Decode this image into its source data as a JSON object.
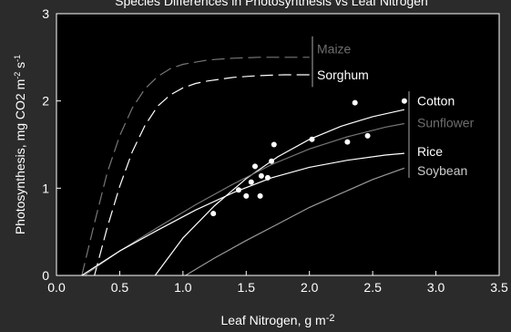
{
  "chart_data": {
    "type": "line",
    "title": "Species Differences in Photosynthesis vs Leaf Nitrogen",
    "xlabel": "Leaf Nitrogen, g m",
    "xlabel_sup": "-2",
    "ylabel": "Photosynthesis, mg CO2 m",
    "ylabel_sup1": "-2",
    "ylabel_mid": " s",
    "ylabel_sup2": "-1",
    "xlim": [
      0,
      3.5
    ],
    "ylim": [
      0,
      3
    ],
    "xticks": [
      "0.0",
      "0.5",
      "1.0",
      "1.5",
      "2.0",
      "2.5",
      "3.0",
      "3.5"
    ],
    "yticks": [
      "0",
      "1",
      "2",
      "3"
    ],
    "grid": false,
    "background": "#000000",
    "page_background": "#2b2b2b",
    "series": [
      {
        "name": "Maize",
        "style": "dashed",
        "color": "#777777",
        "x": [
          0.2,
          0.3,
          0.4,
          0.5,
          0.6,
          0.7,
          0.8,
          0.9,
          1.0,
          1.2,
          1.4,
          1.6,
          1.8,
          2.0
        ],
        "y": [
          0.0,
          0.6,
          1.17,
          1.6,
          1.92,
          2.14,
          2.28,
          2.37,
          2.42,
          2.47,
          2.49,
          2.5,
          2.5,
          2.5
        ]
      },
      {
        "name": "Sorghum",
        "style": "dashed",
        "color": "#ffffff",
        "x": [
          0.3,
          0.4,
          0.5,
          0.6,
          0.7,
          0.8,
          0.9,
          1.0,
          1.1,
          1.2,
          1.4,
          1.6,
          1.8,
          2.0
        ],
        "y": [
          0.0,
          0.54,
          1.02,
          1.42,
          1.72,
          1.94,
          2.07,
          2.15,
          2.2,
          2.23,
          2.27,
          2.29,
          2.3,
          2.3
        ]
      },
      {
        "name": "Cotton",
        "style": "solid",
        "color": "#ffffff",
        "x": [
          0.78,
          1.0,
          1.25,
          1.5,
          1.75,
          2.0,
          2.25,
          2.5,
          2.75
        ],
        "y": [
          0.0,
          0.43,
          0.8,
          1.11,
          1.36,
          1.56,
          1.71,
          1.82,
          1.9
        ]
      },
      {
        "name": "Sunflower",
        "style": "solid",
        "color": "#777777",
        "x": [
          0.22,
          0.5,
          0.8,
          1.1,
          1.4,
          1.7,
          2.0,
          2.3,
          2.6,
          2.75
        ],
        "y": [
          0.0,
          0.28,
          0.55,
          0.81,
          1.05,
          1.27,
          1.45,
          1.59,
          1.7,
          1.74
        ]
      },
      {
        "name": "Rice",
        "style": "solid",
        "color": "#ffffff",
        "x": [
          0.2,
          0.5,
          0.8,
          1.1,
          1.4,
          1.7,
          2.0,
          2.3,
          2.6,
          2.75
        ],
        "y": [
          0.0,
          0.28,
          0.52,
          0.75,
          0.95,
          1.12,
          1.24,
          1.32,
          1.38,
          1.4
        ]
      },
      {
        "name": "Soybean",
        "style": "solid",
        "color": "#999999",
        "x": [
          1.02,
          1.25,
          1.5,
          1.75,
          2.0,
          2.25,
          2.5,
          2.75
        ],
        "y": [
          0.0,
          0.2,
          0.4,
          0.59,
          0.78,
          0.94,
          1.1,
          1.23
        ]
      }
    ],
    "points": {
      "color": "#ffffff",
      "x": [
        1.24,
        1.44,
        1.5,
        1.54,
        1.57,
        1.61,
        1.62,
        1.67,
        1.7,
        1.72,
        2.02,
        2.3,
        2.36,
        2.46,
        2.75
      ],
      "y": [
        0.71,
        0.98,
        0.91,
        1.07,
        1.25,
        0.91,
        1.14,
        1.12,
        1.31,
        1.5,
        1.56,
        1.53,
        1.98,
        1.6,
        2.0
      ]
    },
    "legend_labels": [
      {
        "label": "Maize",
        "color": "#6e6e6e",
        "y": 2.6
      },
      {
        "label": "Sorghum",
        "color": "#ffffff",
        "y": 2.3
      },
      {
        "label": "Cotton",
        "color": "#ffffff",
        "y": 2.0
      },
      {
        "label": "Sunflower",
        "color": "#6e6e6e",
        "y": 1.75
      },
      {
        "label": "Rice",
        "color": "#ffffff",
        "y": 1.42
      },
      {
        "label": "Soybean",
        "color": "#cccccc",
        "y": 1.2
      }
    ]
  }
}
